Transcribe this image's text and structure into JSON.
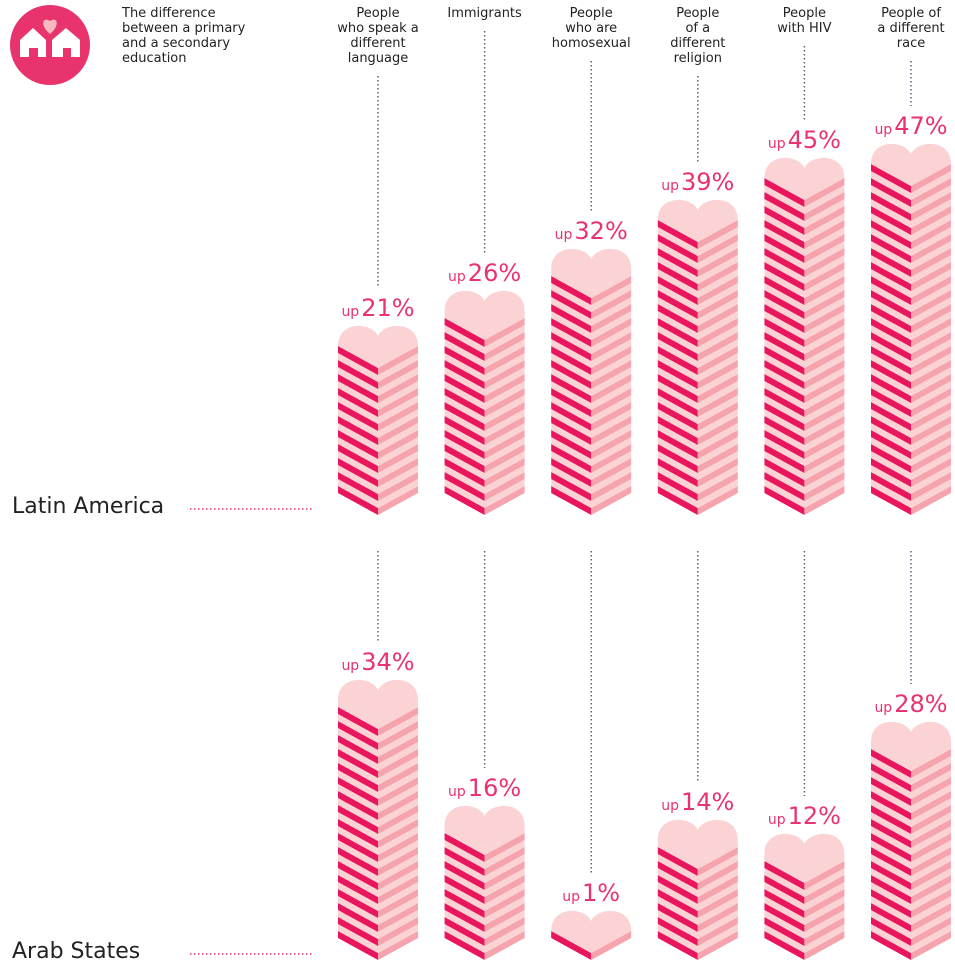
{
  "chart_data": {
    "type": "heart_stack",
    "legend_title": "The difference\nbetween a primary\nand a secondary\neducation",
    "prefix": "up",
    "categories": [
      "People\nwho speak a\ndifferent\nlanguage",
      "Immigrants",
      "People\nwho are\nhomosexual",
      "People\nof a\ndifferent\nreligion",
      "People\nwith HIV",
      "People of\na different\nrace"
    ],
    "series": [
      {
        "name": "Latin America",
        "color": "#e8175d",
        "values": [
          21,
          26,
          32,
          39,
          45,
          47
        ],
        "value_labels": [
          "21%",
          "26%",
          "32%",
          "39%",
          "45%",
          "47%"
        ]
      },
      {
        "name": "Arab States",
        "color": "#e8175d",
        "values": [
          34,
          16,
          1,
          14,
          12,
          28
        ],
        "value_labels": [
          "34%",
          "16%",
          "1%",
          "14%",
          "12%",
          "28%"
        ]
      }
    ]
  }
}
